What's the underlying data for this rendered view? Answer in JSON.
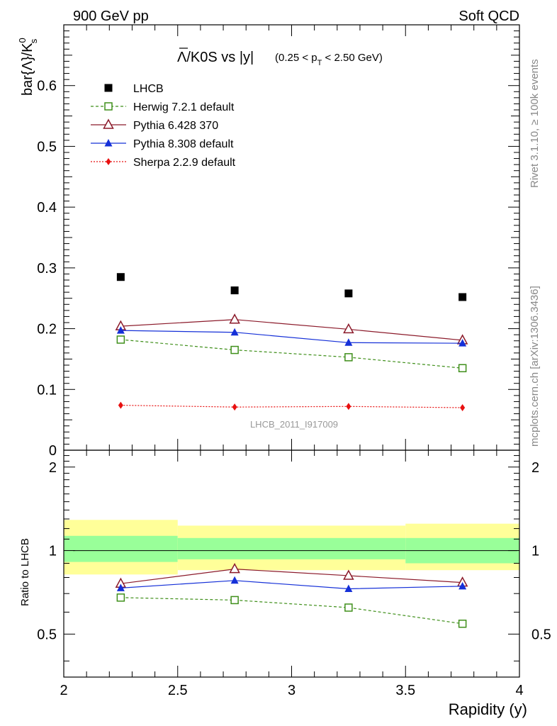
{
  "header": {
    "left": "900 GeV pp",
    "right": "Soft QCD"
  },
  "side_labels": {
    "rivet": "Rivet 3.1.10, ≥ 100k events",
    "mcplots": "mcplots.cern.ch [arXiv:1306.3436]"
  },
  "title": {
    "main": "Λ/K0S vs |y|",
    "range_prefix": "(0.25 < p",
    "range_sub": "T",
    "range_suffix": " < 2.50 GeV)"
  },
  "analysis_id": "LHCB_2011_I917009",
  "chart_data": {
    "type": "line",
    "ylabel_main": "bar{Λ}/K",
    "ylabel_main_sup": "0",
    "ylabel_main_sub": "s",
    "ylabel_ratio": "Ratio to LHCB",
    "xlabel": "Rapidity (y)",
    "xlim": [
      2,
      4
    ],
    "ylim_main": [
      0,
      0.7
    ],
    "ylim_ratio": [
      0.35,
      2.3
    ],
    "x_ticks": [
      "2",
      "2.5",
      "3",
      "3.5",
      "4"
    ],
    "y_ticks_main": [
      "0",
      "0.1",
      "0.2",
      "0.3",
      "0.4",
      "0.5",
      "0.6"
    ],
    "y_ticks_ratio": [
      "0.5",
      "1",
      "2"
    ],
    "x": [
      2.25,
      2.75,
      3.25,
      3.75
    ],
    "bin_edges": [
      2.0,
      2.5,
      3.0,
      3.5,
      4.0
    ],
    "data": {
      "name": "LHCB",
      "values": [
        0.285,
        0.263,
        0.258,
        0.252
      ],
      "band_inner": [
        [
          0.91,
          1.13
        ],
        [
          0.93,
          1.11
        ],
        [
          0.93,
          1.11
        ],
        [
          0.9,
          1.11
        ]
      ],
      "band_outer": [
        [
          0.82,
          1.29
        ],
        [
          0.85,
          1.23
        ],
        [
          0.85,
          1.23
        ],
        [
          0.85,
          1.25
        ]
      ]
    },
    "series": [
      {
        "name": "Herwig 7.2.1 default",
        "values": [
          0.182,
          0.165,
          0.153,
          0.135
        ],
        "ratio": [
          0.677,
          0.663,
          0.623,
          0.545
        ],
        "color": "#3f8f1a",
        "marker": "open-square",
        "dash": "dashed"
      },
      {
        "name": "Pythia 6.428 370",
        "values": [
          0.204,
          0.215,
          0.199,
          0.181
        ],
        "ratio": [
          0.76,
          0.858,
          0.812,
          0.767
        ],
        "color": "#8b1a2a",
        "marker": "open-triangle",
        "dash": "solid"
      },
      {
        "name": "Pythia 8.308 default",
        "values": [
          0.197,
          0.194,
          0.177,
          0.176
        ],
        "ratio": [
          0.733,
          0.78,
          0.728,
          0.744
        ],
        "color": "#1530d8",
        "marker": "filled-triangle",
        "dash": "solid"
      },
      {
        "name": "Sherpa 2.2.9 default",
        "values": [
          0.074,
          0.071,
          0.072,
          0.07
        ],
        "color": "#e81010",
        "marker": "filled-diamond",
        "dash": "dotted"
      }
    ],
    "colors": {
      "band_inner": "#99ff99",
      "band_outer": "#ffff99",
      "data_marker": "#000000"
    }
  }
}
